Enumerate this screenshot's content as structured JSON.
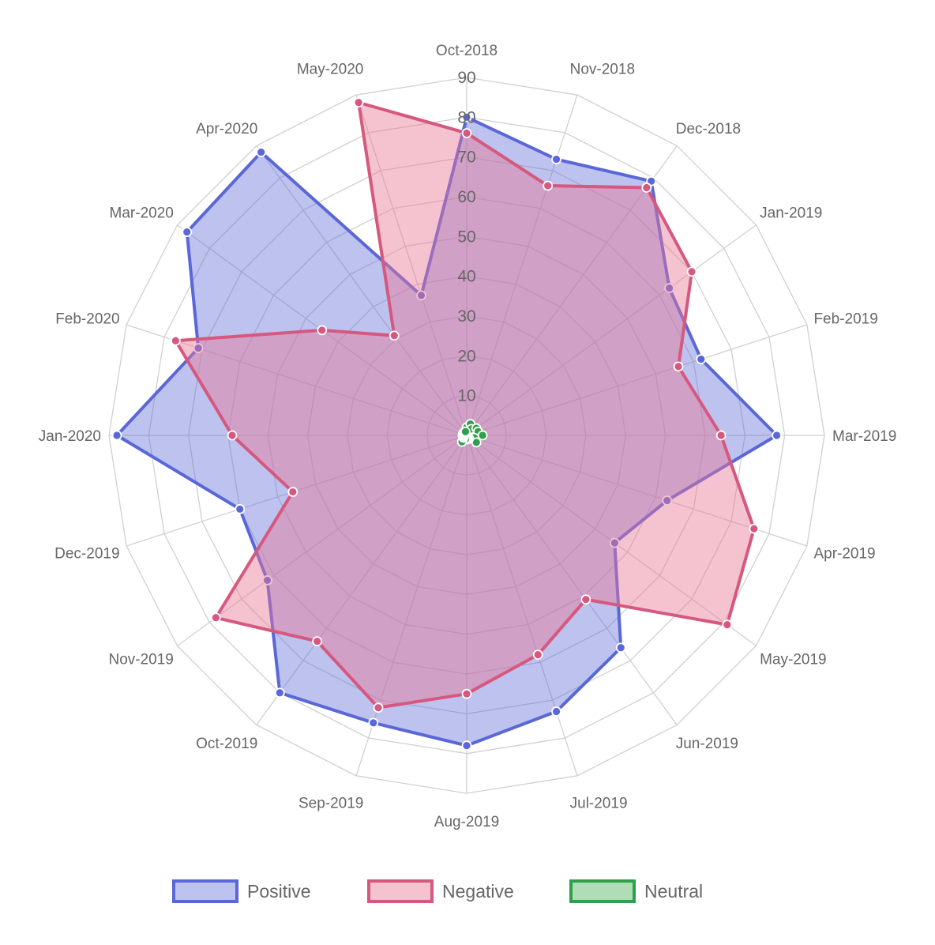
{
  "chart_data": {
    "type": "radar",
    "categories": [
      "Oct-2018",
      "Nov-2018",
      "Dec-2018",
      "Jan-2019",
      "Feb-2019",
      "Mar-2019",
      "Apr-2019",
      "May-2019",
      "Jun-2019",
      "Jul-2019",
      "Aug-2019",
      "Sep-2019",
      "Oct-2019",
      "Nov-2019",
      "Dec-2019",
      "Jan-2020",
      "Feb-2020",
      "Mar-2020",
      "Apr-2020",
      "May-2020"
    ],
    "r_ticks": [
      "10",
      "20",
      "30",
      "40",
      "50",
      "60",
      "70",
      "80",
      "90"
    ],
    "r_max": 90,
    "grid": true,
    "legend_position": "bottom",
    "series": [
      {
        "name": "Positive",
        "color": "#5a67d8",
        "fill": "rgba(90,103,216,0.4)",
        "values": [
          80,
          73,
          79,
          63,
          62,
          78,
          53,
          46,
          66,
          73,
          78,
          76,
          80,
          62,
          60,
          88,
          71,
          87,
          88,
          37
        ]
      },
      {
        "name": "Negative",
        "color": "#d6587e",
        "fill": "rgba(232,120,150,0.45)",
        "values": [
          76,
          66,
          77,
          70,
          56,
          64,
          76,
          81,
          51,
          58,
          65,
          72,
          64,
          78,
          46,
          59,
          77,
          45,
          31,
          88
        ]
      },
      {
        "name": "Neutral",
        "color": "#2ea04a",
        "fill": "rgba(80,180,90,0.45)",
        "values": [
          2,
          3,
          2,
          3,
          3,
          4,
          2,
          3,
          1,
          1,
          1,
          1,
          2,
          1,
          1,
          1,
          1,
          1,
          1,
          1
        ]
      }
    ]
  }
}
